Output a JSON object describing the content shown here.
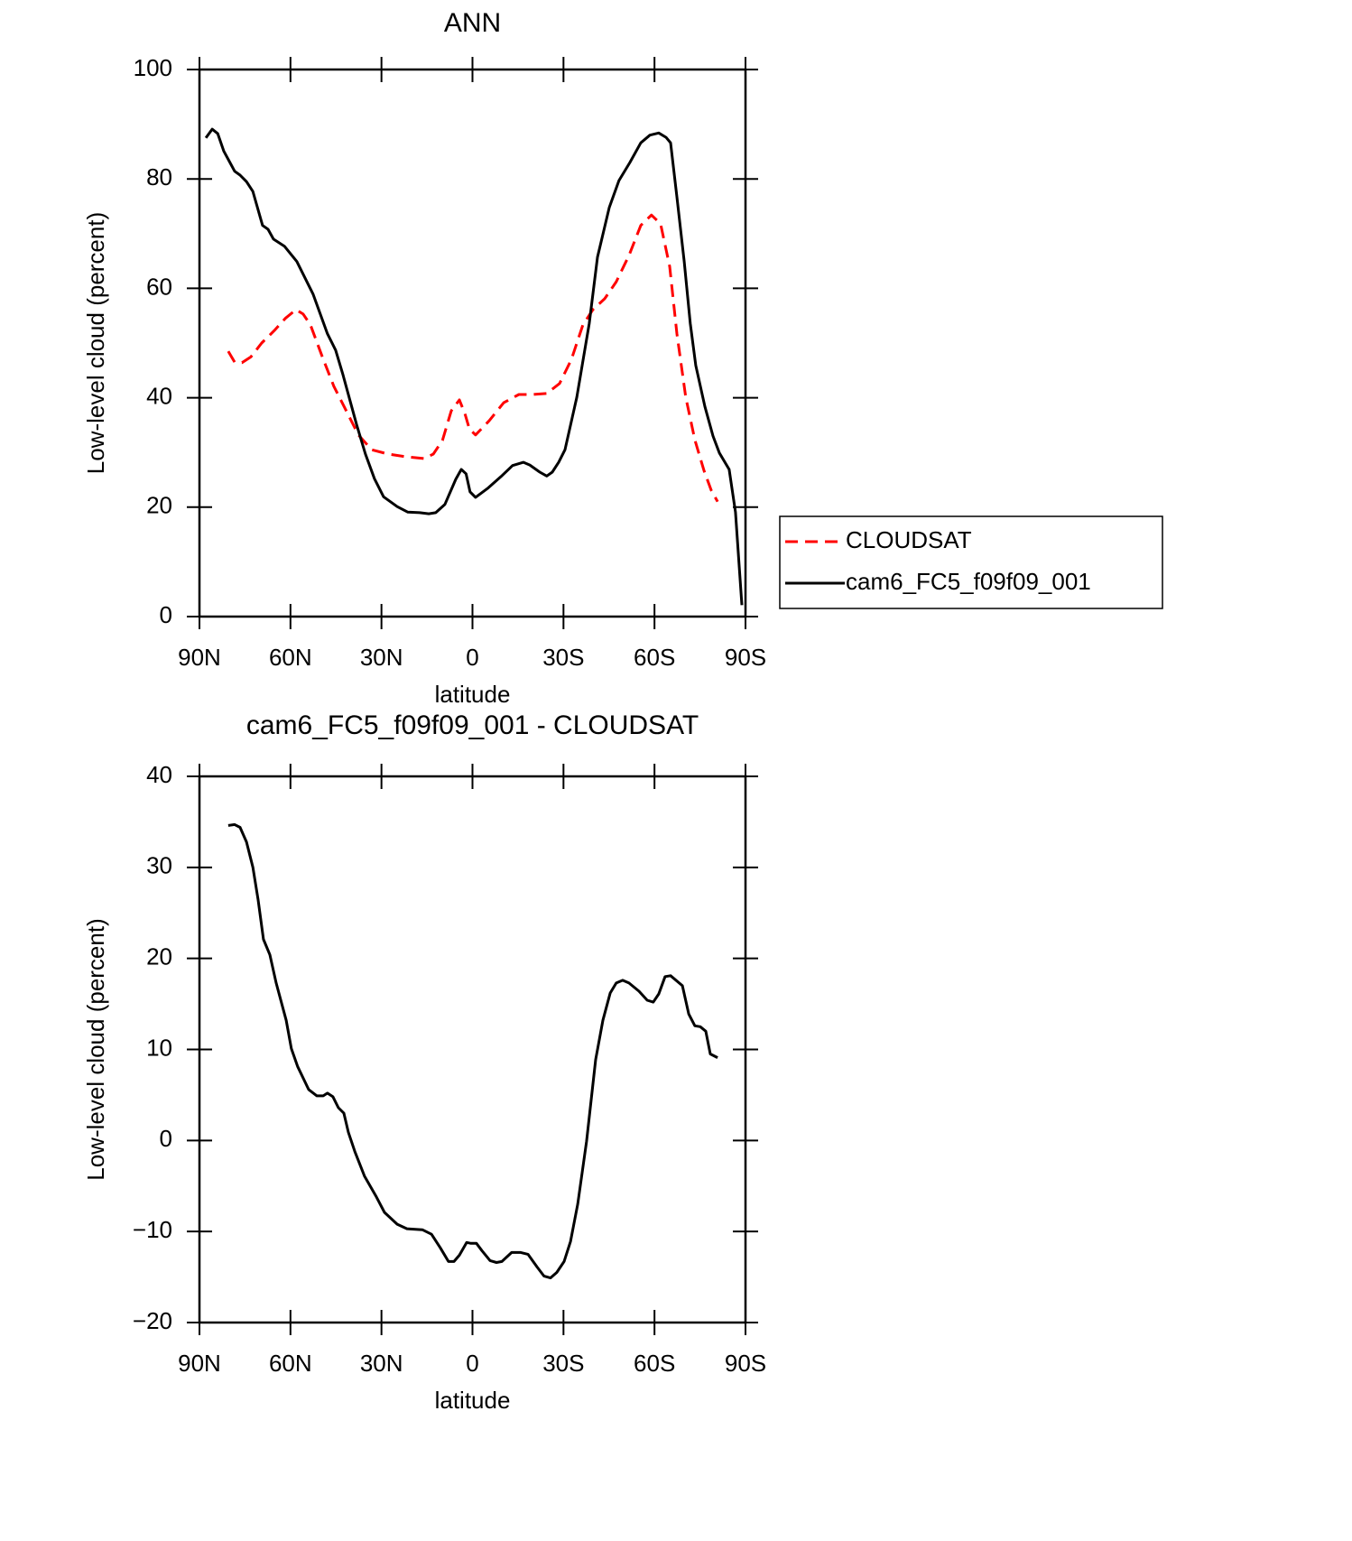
{
  "chart_data": [
    {
      "type": "line",
      "title": "ANN",
      "xlabel": "latitude",
      "ylabel": "Low-level cloud (percent)",
      "xlim": [
        90,
        -90
      ],
      "xticks": [
        {
          "value": 90,
          "label": "90N"
        },
        {
          "value": 60,
          "label": "60N"
        },
        {
          "value": 30,
          "label": "30N"
        },
        0,
        {
          "value": -30,
          "label": "30S"
        },
        {
          "value": -60,
          "label": "60S"
        },
        {
          "value": -90,
          "label": "90S"
        }
      ],
      "ylim": [
        0,
        100
      ],
      "yticks": [
        0,
        20,
        40,
        60,
        80,
        100
      ],
      "legend": "right",
      "series": [
        {
          "name": "CLOUDSAT",
          "color": "#ff0000",
          "linestyle": "dashed",
          "x": [
            80.5,
            78.4,
            76.0,
            73.0,
            69.5,
            65.3,
            61.7,
            58.2,
            55.8,
            53.4,
            49.5,
            45.7,
            41.5,
            37.6,
            33.2,
            27.8,
            21.9,
            15.9,
            12.9,
            9.9,
            7.0,
            4.3,
            2.5,
            1.0,
            -1.0,
            -5.5,
            -10.3,
            -15.3,
            -19.8,
            -24.5,
            -28.7,
            -32.6,
            -36.4,
            -39.7,
            -43.6,
            -47.4,
            -51.6,
            -55.5,
            -59.0,
            -62.0,
            -65.0,
            -67.4,
            -70.3,
            -73.3,
            -76.3,
            -78.7,
            -80.8
          ],
          "values": [
            48.5,
            46.5,
            46.4,
            47.5,
            50.0,
            52.3,
            54.5,
            56.1,
            55.3,
            53.3,
            47.5,
            42.1,
            37.5,
            33.2,
            30.5,
            29.7,
            29.2,
            28.9,
            29.7,
            32.2,
            37.6,
            39.6,
            37.1,
            34.3,
            33.2,
            35.8,
            39.1,
            40.6,
            40.6,
            40.8,
            42.6,
            47.0,
            53.3,
            56.1,
            58.1,
            61.2,
            66.0,
            71.5,
            73.4,
            71.8,
            64.0,
            51.7,
            40.1,
            32.3,
            26.7,
            23.1,
            21.0
          ]
        },
        {
          "name": "cam6_FC5_f09f09_001",
          "color": "#000000",
          "linestyle": "solid",
          "x": [
            87.9,
            85.8,
            84.0,
            82.0,
            78.4,
            76.6,
            74.5,
            72.4,
            69.2,
            67.4,
            65.6,
            62.0,
            57.9,
            52.5,
            47.8,
            45.1,
            42.7,
            38.2,
            35.3,
            32.3,
            29.3,
            24.8,
            21.3,
            17.4,
            14.4,
            12.1,
            9.1,
            5.5,
            3.7,
            2.1,
            0.8,
            -1.0,
            -4.9,
            -9.4,
            -13.2,
            -16.8,
            -18.9,
            -22.2,
            -24.5,
            -26.3,
            -28.4,
            -30.5,
            -34.4,
            -38.5,
            -41.2,
            -45.1,
            -48.3,
            -51.9,
            -55.5,
            -58.5,
            -61.4,
            -63.8,
            -65.3,
            -67.4,
            -69.8,
            -71.8,
            -73.6,
            -76.6,
            -79.3,
            -81.4,
            -84.6,
            -86.7,
            -88.8
          ],
          "values": [
            87.5,
            89.1,
            88.3,
            85.1,
            81.4,
            80.7,
            79.5,
            77.7,
            71.5,
            70.8,
            69.0,
            67.7,
            64.9,
            58.9,
            51.7,
            48.7,
            44.2,
            35.1,
            29.7,
            25.2,
            21.9,
            20.1,
            19.1,
            19.0,
            18.8,
            19.0,
            20.5,
            25.1,
            26.9,
            26.1,
            22.8,
            21.8,
            23.4,
            25.6,
            27.6,
            28.2,
            27.7,
            26.4,
            25.7,
            26.4,
            28.2,
            30.5,
            40.1,
            53.6,
            65.7,
            74.8,
            79.7,
            83.0,
            86.6,
            88.0,
            88.4,
            87.6,
            86.6,
            76.7,
            64.9,
            53.6,
            45.9,
            38.4,
            33.0,
            29.9,
            26.9,
            19.1,
            2.1
          ]
        }
      ]
    },
    {
      "type": "line",
      "title": "cam6_FC5_f09f09_001 - CLOUDSAT",
      "xlabel": "latitude",
      "ylabel": "Low-level cloud (percent)",
      "xlim": [
        90,
        -90
      ],
      "xticks": [
        {
          "value": 90,
          "label": "90N"
        },
        {
          "value": 60,
          "label": "60N"
        },
        {
          "value": 30,
          "label": "30N"
        },
        0,
        {
          "value": -30,
          "label": "30S"
        },
        {
          "value": -60,
          "label": "60S"
        },
        {
          "value": -90,
          "label": "90S"
        }
      ],
      "ylim": [
        -20,
        40
      ],
      "yticks": [
        {
          "value": -20,
          "label": "−20"
        },
        {
          "value": -10,
          "label": "−10"
        },
        0,
        10,
        20,
        30,
        40
      ],
      "series": [
        {
          "color": "#000000",
          "linestyle": "solid",
          "x": [
            80.5,
            78.4,
            76.6,
            74.5,
            72.4,
            70.7,
            68.9,
            66.8,
            64.7,
            61.4,
            59.7,
            57.6,
            54.0,
            51.3,
            49.2,
            47.8,
            46.0,
            44.2,
            42.4,
            40.9,
            38.8,
            35.6,
            31.7,
            29.0,
            24.8,
            21.6,
            16.5,
            13.5,
            10.6,
            7.9,
            6.1,
            4.3,
            1.9,
            0.5,
            -1.3,
            -3.1,
            -5.8,
            -7.9,
            -9.7,
            -12.9,
            -15.9,
            -18.3,
            -21.3,
            -23.6,
            -25.7,
            -27.8,
            -30.2,
            -32.3,
            -34.7,
            -37.6,
            -40.6,
            -43.0,
            -45.4,
            -47.4,
            -49.5,
            -51.6,
            -54.9,
            -57.6,
            -59.6,
            -61.4,
            -63.5,
            -65.3,
            -69.2,
            -71.3,
            -73.3,
            -75.1,
            -76.9,
            -78.4,
            -80.8
          ],
          "values": [
            34.6,
            34.7,
            34.4,
            32.8,
            30.0,
            26.5,
            22.1,
            20.4,
            17.3,
            13.2,
            10.1,
            8.1,
            5.6,
            4.9,
            4.9,
            5.2,
            4.8,
            3.6,
            3.0,
            0.9,
            -1.2,
            -3.9,
            -6.2,
            -7.9,
            -9.2,
            -9.7,
            -9.8,
            -10.3,
            -11.8,
            -13.3,
            -13.3,
            -12.6,
            -11.2,
            -11.3,
            -11.3,
            -12.1,
            -13.2,
            -13.4,
            -13.3,
            -12.3,
            -12.3,
            -12.5,
            -13.9,
            -14.9,
            -15.1,
            -14.5,
            -13.3,
            -11.1,
            -7.0,
            -0.1,
            8.9,
            13.2,
            16.2,
            17.3,
            17.6,
            17.3,
            16.4,
            15.4,
            15.2,
            16.1,
            18.0,
            18.1,
            17.0,
            13.9,
            12.6,
            12.5,
            12.0,
            9.5,
            9.1
          ]
        }
      ]
    }
  ]
}
